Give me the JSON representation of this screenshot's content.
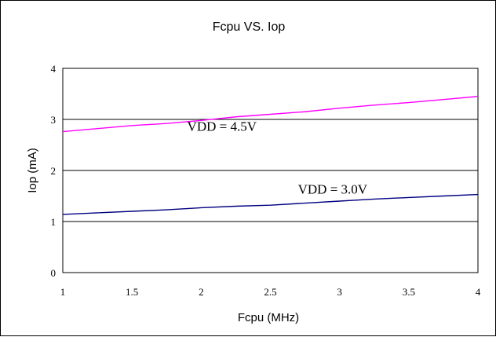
{
  "chart_data": {
    "type": "line",
    "title": "Fcpu VS. Iop",
    "xlabel": "Fcpu (MHz)",
    "ylabel": "Iop (mA)",
    "xlim": [
      1,
      4
    ],
    "ylim": [
      0,
      4
    ],
    "x_ticks": [
      "1",
      "1.5",
      "2",
      "2.5",
      "3",
      "3.5",
      "4"
    ],
    "y_ticks": [
      "0",
      "1",
      "2",
      "3",
      "4"
    ],
    "grid": "horizontal",
    "legend": "none",
    "series": [
      {
        "name": "VDD = 4.5V",
        "color": "#ff00ff",
        "x": [
          1.0,
          1.25,
          1.5,
          1.75,
          2.0,
          2.25,
          2.5,
          2.75,
          3.0,
          3.25,
          3.5,
          3.75,
          4.0
        ],
        "y": [
          2.76,
          2.82,
          2.88,
          2.92,
          2.98,
          3.05,
          3.1,
          3.15,
          3.22,
          3.28,
          3.33,
          3.39,
          3.45
        ]
      },
      {
        "name": "VDD = 3.0V",
        "color": "#000080",
        "x": [
          1.0,
          1.25,
          1.5,
          1.75,
          2.0,
          2.25,
          2.5,
          2.75,
          3.0,
          3.25,
          3.5,
          3.75,
          4.0
        ],
        "y": [
          1.14,
          1.17,
          1.2,
          1.23,
          1.27,
          1.3,
          1.32,
          1.36,
          1.4,
          1.44,
          1.47,
          1.5,
          1.53
        ]
      }
    ]
  }
}
